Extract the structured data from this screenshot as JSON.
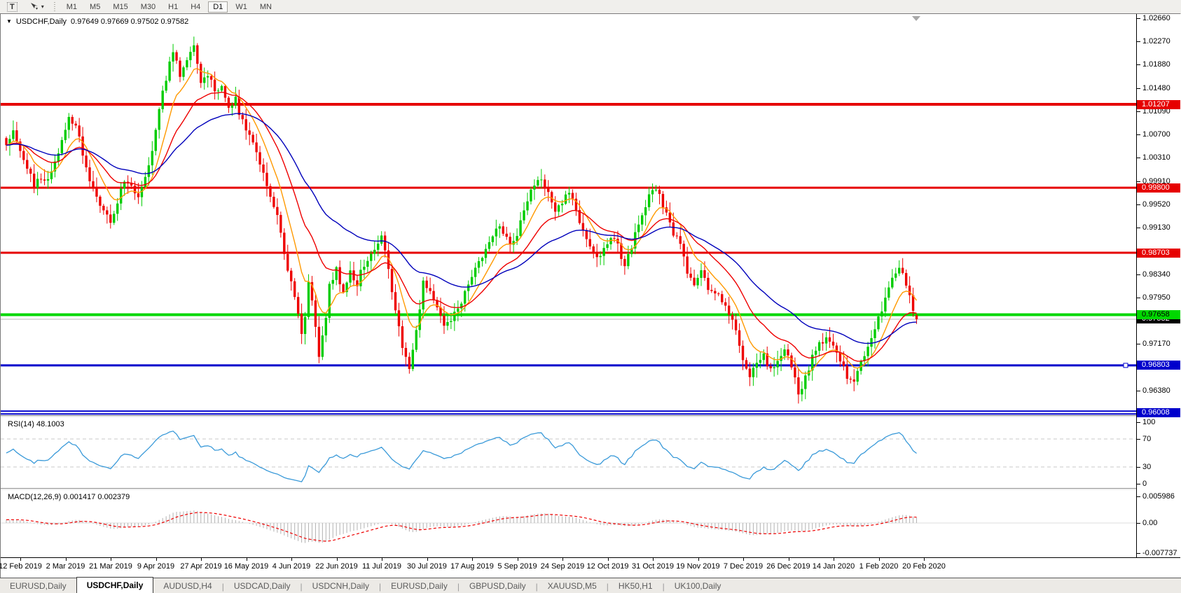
{
  "toolbar": {
    "text_tool_label": "T",
    "timeframes": [
      {
        "label": "M1"
      },
      {
        "label": "M5"
      },
      {
        "label": "M15"
      },
      {
        "label": "M30"
      },
      {
        "label": "H1"
      },
      {
        "label": "H4"
      },
      {
        "label": "D1"
      },
      {
        "label": "W1"
      },
      {
        "label": "MN"
      }
    ],
    "active_timeframe": "D1"
  },
  "chart": {
    "dropdown_glyph": "▼",
    "symbol": "USDCHF,Daily",
    "ohlc_text": "0.97649 0.97669 0.97502 0.97582"
  },
  "price_axis": {
    "labels": [
      "1.02660",
      "1.02270",
      "1.01880",
      "1.01480",
      "1.01090",
      "1.00700",
      "1.00310",
      "0.99910",
      "0.99520",
      "0.99130",
      "0.98340",
      "0.97950",
      "0.97170",
      "0.96380"
    ]
  },
  "date_axis": {
    "labels": [
      "12 Feb 2019",
      "2 Mar 2019",
      "21 Mar 2019",
      "9 Apr 2019",
      "27 Apr 2019",
      "16 May 2019",
      "4 Jun 2019",
      "22 Jun 2019",
      "11 Jul 2019",
      "30 Jul 2019",
      "17 Aug 2019",
      "5 Sep 2019",
      "24 Sep 2019",
      "12 Oct 2019",
      "31 Oct 2019",
      "19 Nov 2019",
      "7 Dec 2019",
      "26 Dec 2019",
      "14 Jan 2020",
      "1 Feb 2020",
      "20 Feb 2020"
    ]
  },
  "rsi_panel": {
    "label": "RSI(14) 48.1003",
    "levels": [
      {
        "label": "100",
        "value": 100,
        "dashed": false
      },
      {
        "label": "70",
        "value": 70,
        "dashed": true
      },
      {
        "label": "30",
        "value": 30,
        "dashed": true
      },
      {
        "label": "0",
        "value": 0,
        "dashed": false
      }
    ]
  },
  "macd_panel": {
    "label": "MACD(12,26,9) 0.001417 0.002379",
    "levels": [
      {
        "label": "0.005986",
        "value": 0.005986
      },
      {
        "label": "0.00",
        "value": 0
      },
      {
        "label": "-0.007737",
        "value": -0.007737
      }
    ]
  },
  "tabs": [
    {
      "label": "EURUSD,Daily",
      "active": false
    },
    {
      "label": "USDCHF,Daily",
      "active": true
    },
    {
      "label": "AUDUSD,H4",
      "active": false
    },
    {
      "label": "USDCAD,Daily",
      "active": false
    },
    {
      "label": "USDCNH,Daily",
      "active": false
    },
    {
      "label": "EURUSD,Daily",
      "active": false
    },
    {
      "label": "GBPUSD,Daily",
      "active": false
    },
    {
      "label": "XAUUSD,M5",
      "active": false
    },
    {
      "label": "HK50,H1",
      "active": false
    },
    {
      "label": "UK100,Daily",
      "active": false
    }
  ],
  "colors": {
    "candle_up": "#00cc00",
    "candle_down": "#ee0000",
    "ma_fast": "#ff9900",
    "ma_mid": "#ee0000",
    "ma_slow": "#0000bb",
    "rsi_line": "#3a9ad9",
    "rsi_level_dash": "#c8c8c8",
    "macd_hist": "#b2b2b2",
    "macd_signal": "#ee0000",
    "resistance_line": "#e60000",
    "support_green": "#00d800",
    "support_blue": "#0000cc",
    "current_price_line": "#b8b8b8",
    "badge_black": "#000000"
  },
  "chart_data": {
    "type": "candlestick",
    "symbol": "USDCHF",
    "timeframe": "Daily",
    "bars": 263,
    "price_range_visible": [
      0.9593,
      1.027
    ],
    "current_ohlc": {
      "open": 0.97649,
      "high": 0.97669,
      "low": 0.97502,
      "close": 0.97582
    },
    "close_anchors": [
      [
        0,
        1.0058
      ],
      [
        2,
        1.0075
      ],
      [
        4,
        1.004
      ],
      [
        6,
        1.001
      ],
      [
        8,
        0.9985
      ],
      [
        10,
        1.0
      ],
      [
        12,
        0.999
      ],
      [
        14,
        1.0022
      ],
      [
        16,
        1.006
      ],
      [
        18,
        1.0098
      ],
      [
        20,
        1.0088
      ],
      [
        22,
        1.004
      ],
      [
        24,
        0.9995
      ],
      [
        26,
        0.997
      ],
      [
        28,
        0.994
      ],
      [
        30,
        0.9922
      ],
      [
        32,
        0.9955
      ],
      [
        34,
        0.9992
      ],
      [
        36,
        0.998
      ],
      [
        38,
        0.997
      ],
      [
        40,
        0.9998
      ],
      [
        42,
        1.004
      ],
      [
        44,
        1.011
      ],
      [
        46,
        1.0165
      ],
      [
        48,
        1.021
      ],
      [
        50,
        1.017
      ],
      [
        52,
        1.0195
      ],
      [
        54,
        1.0222
      ],
      [
        56,
        1.016
      ],
      [
        58,
        1.0172
      ],
      [
        60,
        1.014
      ],
      [
        62,
        1.0148
      ],
      [
        64,
        1.012
      ],
      [
        66,
        1.0128
      ],
      [
        68,
        1.009
      ],
      [
        70,
        1.0068
      ],
      [
        72,
        1.004
      ],
      [
        74,
        1.0002
      ],
      [
        76,
        0.9965
      ],
      [
        78,
        0.994
      ],
      [
        80,
        0.9862
      ],
      [
        82,
        0.9825
      ],
      [
        84,
        0.9768
      ],
      [
        85,
        0.973
      ],
      [
        86,
        0.976
      ],
      [
        87,
        0.9822
      ],
      [
        88,
        0.9795
      ],
      [
        89,
        0.9745
      ],
      [
        90,
        0.97
      ],
      [
        91,
        0.9725
      ],
      [
        92,
        0.9762
      ],
      [
        93,
        0.9812
      ],
      [
        95,
        0.984
      ],
      [
        97,
        0.9802
      ],
      [
        99,
        0.9838
      ],
      [
        101,
        0.982
      ],
      [
        103,
        0.9852
      ],
      [
        105,
        0.9868
      ],
      [
        107,
        0.9888
      ],
      [
        108,
        0.9898
      ],
      [
        110,
        0.9845
      ],
      [
        112,
        0.9775
      ],
      [
        114,
        0.971
      ],
      [
        116,
        0.9672
      ],
      [
        118,
        0.9738
      ],
      [
        120,
        0.9822
      ],
      [
        122,
        0.98
      ],
      [
        124,
        0.9778
      ],
      [
        126,
        0.9748
      ],
      [
        128,
        0.9758
      ],
      [
        130,
        0.9772
      ],
      [
        132,
        0.98
      ],
      [
        134,
        0.9828
      ],
      [
        136,
        0.985
      ],
      [
        138,
        0.9875
      ],
      [
        140,
        0.9898
      ],
      [
        142,
        0.9918
      ],
      [
        144,
        0.9892
      ],
      [
        146,
        0.9885
      ],
      [
        148,
        0.9922
      ],
      [
        150,
        0.9962
      ],
      [
        152,
        0.9988
      ],
      [
        154,
        1.0
      ],
      [
        156,
        0.9968
      ],
      [
        158,
        0.9938
      ],
      [
        160,
        0.9952
      ],
      [
        162,
        0.9975
      ],
      [
        164,
        0.9942
      ],
      [
        166,
        0.9905
      ],
      [
        168,
        0.9878
      ],
      [
        170,
        0.9858
      ],
      [
        172,
        0.9872
      ],
      [
        174,
        0.9898
      ],
      [
        176,
        0.988
      ],
      [
        178,
        0.9852
      ],
      [
        180,
        0.988
      ],
      [
        182,
        0.9918
      ],
      [
        184,
        0.9952
      ],
      [
        186,
        0.9982
      ],
      [
        188,
        0.9968
      ],
      [
        190,
        0.9935
      ],
      [
        192,
        0.9905
      ],
      [
        194,
        0.9882
      ],
      [
        196,
        0.984
      ],
      [
        198,
        0.9818
      ],
      [
        200,
        0.9838
      ],
      [
        202,
        0.9812
      ],
      [
        204,
        0.9802
      ],
      [
        206,
        0.979
      ],
      [
        208,
        0.9772
      ],
      [
        210,
        0.9738
      ],
      [
        212,
        0.9692
      ],
      [
        214,
        0.966
      ],
      [
        216,
        0.9682
      ],
      [
        218,
        0.9696
      ],
      [
        220,
        0.9672
      ],
      [
        222,
        0.9692
      ],
      [
        224,
        0.9712
      ],
      [
        226,
        0.9682
      ],
      [
        228,
        0.9628
      ],
      [
        230,
        0.9662
      ],
      [
        232,
        0.9692
      ],
      [
        234,
        0.9716
      ],
      [
        236,
        0.973
      ],
      [
        238,
        0.9712
      ],
      [
        240,
        0.9688
      ],
      [
        242,
        0.9662
      ],
      [
        244,
        0.9652
      ],
      [
        246,
        0.9682
      ],
      [
        248,
        0.9718
      ],
      [
        250,
        0.9745
      ],
      [
        252,
        0.9775
      ],
      [
        254,
        0.9812
      ],
      [
        256,
        0.9838
      ],
      [
        257,
        0.985
      ],
      [
        258,
        0.9832
      ],
      [
        260,
        0.9802
      ],
      [
        261,
        0.9772
      ],
      [
        262,
        0.97582
      ]
    ],
    "horizontal_lines": [
      {
        "price": 1.01207,
        "label": "1.01207",
        "color": "#e60000",
        "badge_text_color": "#ffffff",
        "width": 4,
        "style": "solid"
      },
      {
        "price": 0.998,
        "label": "0.99800",
        "color": "#e60000",
        "badge_text_color": "#ffffff",
        "width": 3,
        "style": "solid"
      },
      {
        "price": 0.98703,
        "label": "0.98703",
        "color": "#e60000",
        "badge_text_color": "#ffffff",
        "width": 3,
        "style": "solid"
      },
      {
        "price": 0.97658,
        "label": "0.97658",
        "color": "#00d800",
        "badge_text_color": "#000000",
        "width": 4,
        "style": "solid"
      },
      {
        "price": 0.96803,
        "label": "0.96803",
        "color": "#0000cc",
        "badge_text_color": "#ffffff",
        "width": 3,
        "style": "solid",
        "handle": true
      },
      {
        "price": 0.96008,
        "label": "0.96008",
        "color": "#0000cc",
        "badge_text_color": "#ffffff",
        "width": 3,
        "style": "double"
      }
    ],
    "current_price_line": {
      "price": 0.97582,
      "label": "0.97582"
    },
    "moving_averages": [
      {
        "period": 9,
        "color": "#ff9900"
      },
      {
        "period": 21,
        "color": "#ee0000"
      },
      {
        "period": 45,
        "color": "#0000bb"
      }
    ],
    "rsi": {
      "period": 14,
      "current": 48.1003,
      "levels": [
        70,
        30
      ]
    },
    "macd": {
      "fast": 12,
      "slow": 26,
      "signal": 9,
      "current_macd": 0.001417,
      "current_signal": 0.002379
    }
  }
}
